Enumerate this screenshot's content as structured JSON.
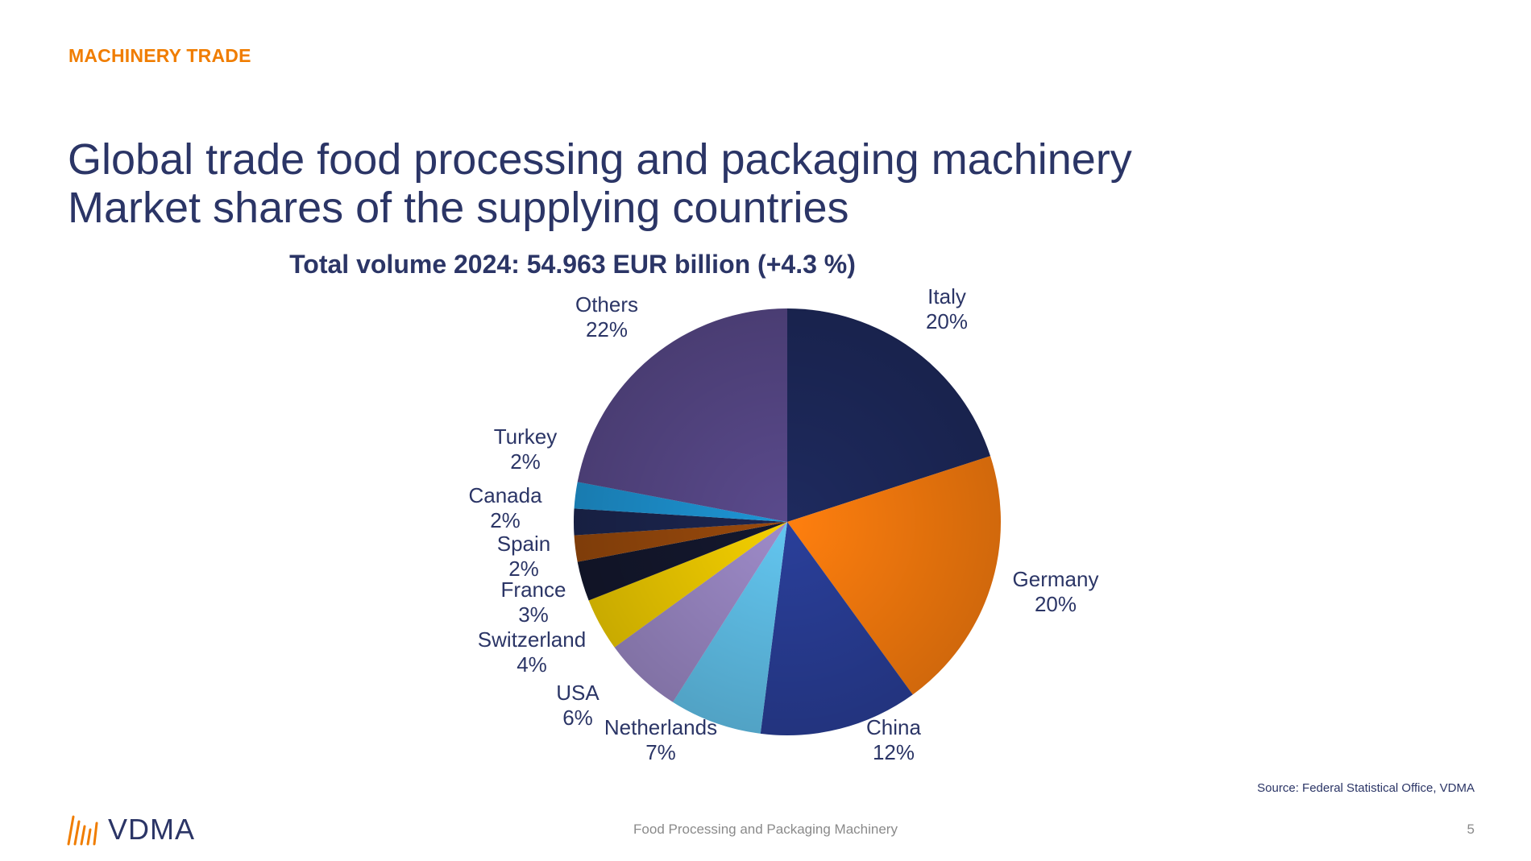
{
  "header": {
    "section_label": "MACHINERY TRADE",
    "title_line1": "Global trade food processing and packaging machinery",
    "title_line2": "Market shares of the supplying countries"
  },
  "chart_data": {
    "type": "pie",
    "title": "Total volume 2024: 54.963 EUR billion (+4.3 %)",
    "slices": [
      {
        "label": "Italy",
        "value": 20,
        "display": "20%",
        "color": "#1E2A5E"
      },
      {
        "label": "Germany",
        "value": 20,
        "display": "20%",
        "color": "#FF7F0E"
      },
      {
        "label": "China",
        "value": 12,
        "display": "12%",
        "color": "#2A3F9A"
      },
      {
        "label": "Netherlands",
        "value": 7,
        "display": "7%",
        "color": "#63C6F0"
      },
      {
        "label": "USA",
        "value": 6,
        "display": "6%",
        "color": "#9E8BC9"
      },
      {
        "label": "Switzerland",
        "value": 4,
        "display": "4%",
        "color": "#F5D000"
      },
      {
        "label": "France",
        "value": 3,
        "display": "3%",
        "color": "#14182E"
      },
      {
        "label": "Spain",
        "value": 2,
        "display": "2%",
        "color": "#9A4A0C"
      },
      {
        "label": "Canada",
        "value": 2,
        "display": "2%",
        "color": "#1C2650"
      },
      {
        "label": "Turkey",
        "value": 2,
        "display": "2%",
        "color": "#1E96D6"
      },
      {
        "label": "Others",
        "value": 22,
        "display": "22%",
        "color": "#5A4A8C"
      }
    ]
  },
  "source": "Source: Federal Statistical Office, VDMA",
  "footer": {
    "text": "Food Processing and Packaging Machinery",
    "page_number": "5",
    "logo_text": "VDMA"
  },
  "colors": {
    "accent": "#F07D00",
    "title": "#2B3566"
  }
}
